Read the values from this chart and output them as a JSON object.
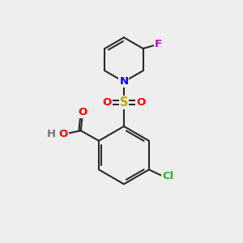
{
  "bg_color": "#eeeeee",
  "bond_color": "#2a2a2a",
  "bond_width": 1.5,
  "atom_colors": {
    "O": "#ff0000",
    "N": "#0000ee",
    "S": "#bbaa00",
    "Cl": "#22bb22",
    "F": "#cc00cc",
    "H": "#777777",
    "C": "#2a2a2a"
  },
  "font_size": 9.5,
  "fig_size": [
    3.0,
    3.0
  ],
  "dpi": 100
}
